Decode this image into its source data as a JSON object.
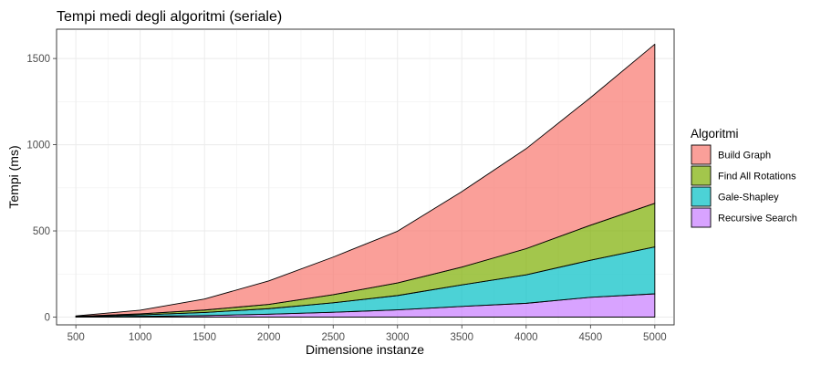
{
  "chart_data": {
    "type": "area",
    "stacked": true,
    "title": "Tempi medi degli algoritmi (seriale)",
    "xlabel": "Dimensione instanze",
    "ylabel": "Tempi (ms)",
    "x": [
      500,
      1000,
      1500,
      2000,
      2500,
      3000,
      3500,
      4000,
      4500,
      5000
    ],
    "xlim": [
      350,
      5150
    ],
    "ylim": [
      -45,
      1670
    ],
    "xticks": [
      500,
      1000,
      1500,
      2000,
      2500,
      3000,
      3500,
      4000,
      4500,
      5000
    ],
    "yticks": [
      0,
      500,
      1000,
      1500
    ],
    "grid": true,
    "legend": {
      "title": "Algoritmi",
      "position": "right"
    },
    "series": [
      {
        "name": "Recursive Search",
        "color": "#C77CFF",
        "values": [
          1,
          4,
          9,
          17,
          28,
          42,
          62,
          80,
          115,
          135
        ]
      },
      {
        "name": "Gale-Shapley",
        "color": "#00BFC4",
        "values": [
          2,
          9,
          18,
          32,
          55,
          83,
          125,
          165,
          215,
          272
        ]
      },
      {
        "name": "Find All Rotations",
        "color": "#7CAE00",
        "values": [
          1,
          6,
          14,
          25,
          47,
          73,
          103,
          152,
          203,
          253
        ]
      },
      {
        "name": "Build Graph",
        "color": "#F8766D",
        "values": [
          3,
          21,
          64,
          136,
          218,
          300,
          438,
          580,
          740,
          923
        ]
      }
    ]
  }
}
